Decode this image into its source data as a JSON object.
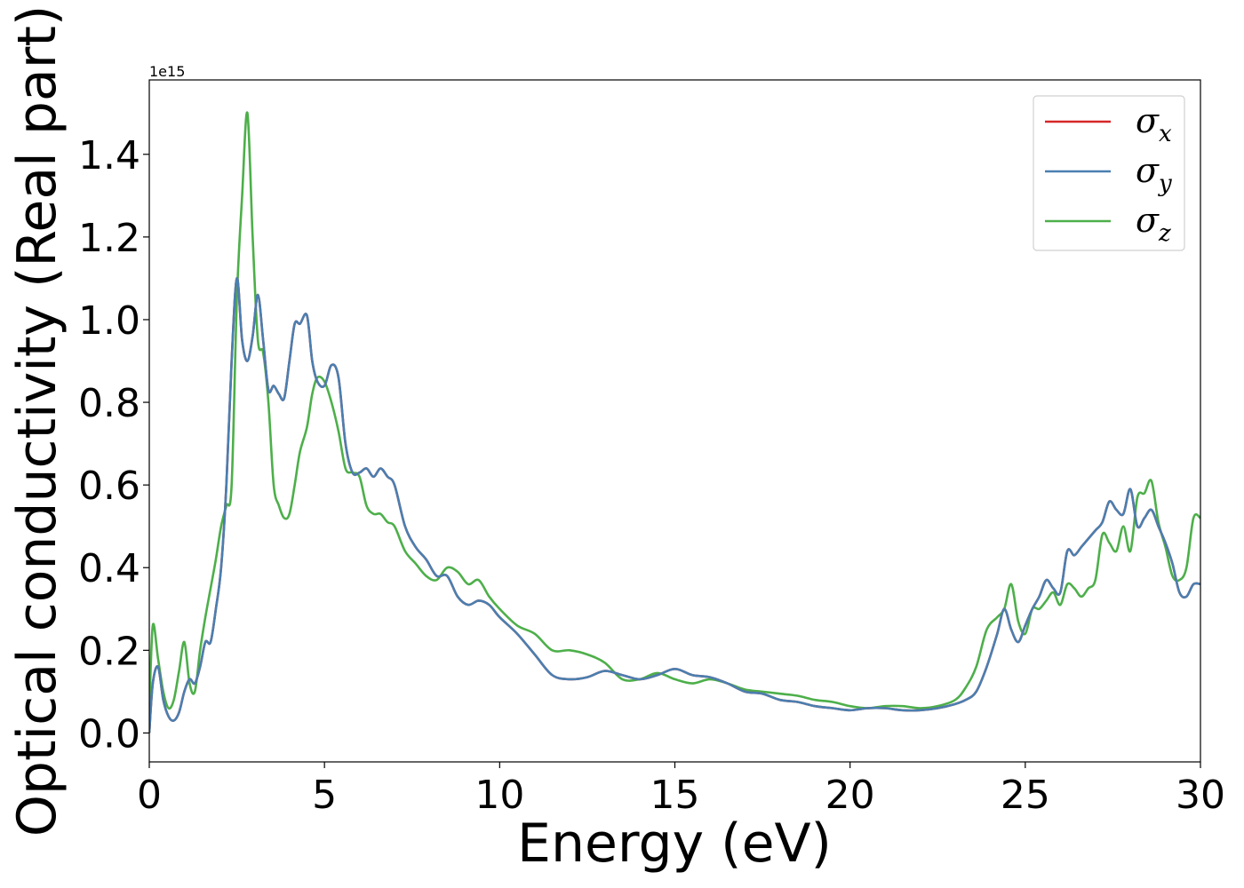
{
  "chart_data": {
    "type": "line",
    "xlabel": "Energy (eV)",
    "ylabel": "Optical conductivity (Real part)",
    "y_offset_text": "1e15",
    "xlim": [
      0,
      30
    ],
    "ylim": [
      -0.07,
      1.58
    ],
    "x_ticks": [
      0,
      5,
      10,
      15,
      20,
      25,
      30
    ],
    "x_tick_labels": [
      "0",
      "5",
      "10",
      "15",
      "20",
      "25",
      "30"
    ],
    "y_ticks": [
      0.0,
      0.2,
      0.4,
      0.6,
      0.8,
      1.0,
      1.2,
      1.4
    ],
    "y_tick_labels": [
      "0.0",
      "0.2",
      "0.4",
      "0.6",
      "0.8",
      "1.0",
      "1.2",
      "1.4"
    ],
    "grid": false,
    "legend_position": "top-right",
    "x": [
      0,
      0.1,
      0.25,
      0.4,
      0.55,
      0.7,
      0.85,
      1.0,
      1.15,
      1.3,
      1.45,
      1.6,
      1.75,
      1.9,
      2.05,
      2.2,
      2.35,
      2.5,
      2.65,
      2.8,
      2.95,
      3.1,
      3.25,
      3.4,
      3.55,
      3.7,
      3.85,
      4.0,
      4.15,
      4.3,
      4.5,
      4.65,
      4.8,
      5.0,
      5.2,
      5.4,
      5.6,
      5.8,
      6.0,
      6.2,
      6.4,
      6.6,
      6.8,
      7.0,
      7.3,
      7.6,
      7.9,
      8.2,
      8.5,
      8.8,
      9.1,
      9.4,
      9.7,
      10.0,
      10.5,
      11.0,
      11.5,
      12.0,
      12.5,
      13.0,
      13.5,
      14.0,
      14.5,
      15.0,
      15.5,
      16.0,
      16.5,
      17.0,
      17.5,
      18.0,
      18.5,
      19.0,
      19.5,
      20.0,
      20.5,
      21.0,
      21.5,
      22.0,
      22.5,
      23.0,
      23.3,
      23.6,
      23.9,
      24.2,
      24.4,
      24.6,
      24.8,
      25.0,
      25.2,
      25.4,
      25.6,
      25.8,
      26.0,
      26.2,
      26.4,
      26.6,
      26.8,
      27.0,
      27.2,
      27.4,
      27.6,
      27.8,
      28.0,
      28.2,
      28.4,
      28.6,
      28.8,
      29.0,
      29.2,
      29.4,
      29.6,
      29.8,
      30.0
    ],
    "series": [
      {
        "name": "σx",
        "color": "#d62728",
        "values": [
          0.0,
          0.12,
          0.16,
          0.08,
          0.04,
          0.03,
          0.05,
          0.1,
          0.13,
          0.12,
          0.16,
          0.22,
          0.22,
          0.3,
          0.4,
          0.6,
          0.9,
          1.1,
          0.95,
          0.9,
          0.96,
          1.06,
          0.95,
          0.83,
          0.84,
          0.82,
          0.81,
          0.9,
          0.99,
          0.99,
          1.01,
          0.9,
          0.85,
          0.84,
          0.89,
          0.86,
          0.7,
          0.63,
          0.63,
          0.64,
          0.62,
          0.64,
          0.62,
          0.6,
          0.5,
          0.45,
          0.42,
          0.38,
          0.38,
          0.33,
          0.31,
          0.32,
          0.31,
          0.28,
          0.24,
          0.19,
          0.14,
          0.13,
          0.135,
          0.15,
          0.14,
          0.13,
          0.14,
          0.155,
          0.14,
          0.135,
          0.12,
          0.1,
          0.095,
          0.08,
          0.075,
          0.065,
          0.06,
          0.055,
          0.06,
          0.06,
          0.055,
          0.055,
          0.06,
          0.07,
          0.08,
          0.1,
          0.16,
          0.24,
          0.3,
          0.25,
          0.22,
          0.26,
          0.3,
          0.33,
          0.37,
          0.35,
          0.34,
          0.44,
          0.43,
          0.45,
          0.47,
          0.49,
          0.51,
          0.56,
          0.54,
          0.53,
          0.59,
          0.5,
          0.52,
          0.54,
          0.5,
          0.46,
          0.41,
          0.34,
          0.33,
          0.36,
          0.36
        ],
        "values_note_hidden": null
      },
      {
        "name": "σy",
        "color": "#4a7fb0",
        "values": [
          0.0,
          0.12,
          0.16,
          0.08,
          0.04,
          0.03,
          0.05,
          0.1,
          0.13,
          0.12,
          0.16,
          0.22,
          0.22,
          0.3,
          0.4,
          0.6,
          0.9,
          1.1,
          0.95,
          0.9,
          0.96,
          1.06,
          0.95,
          0.83,
          0.84,
          0.82,
          0.81,
          0.9,
          0.99,
          0.99,
          1.01,
          0.9,
          0.85,
          0.84,
          0.89,
          0.86,
          0.7,
          0.63,
          0.63,
          0.64,
          0.62,
          0.64,
          0.62,
          0.6,
          0.5,
          0.45,
          0.42,
          0.38,
          0.38,
          0.33,
          0.31,
          0.32,
          0.31,
          0.28,
          0.24,
          0.19,
          0.14,
          0.13,
          0.135,
          0.15,
          0.14,
          0.13,
          0.14,
          0.155,
          0.14,
          0.135,
          0.12,
          0.1,
          0.095,
          0.08,
          0.075,
          0.065,
          0.06,
          0.055,
          0.06,
          0.06,
          0.055,
          0.055,
          0.06,
          0.07,
          0.08,
          0.1,
          0.16,
          0.24,
          0.3,
          0.25,
          0.22,
          0.26,
          0.3,
          0.33,
          0.37,
          0.35,
          0.34,
          0.44,
          0.43,
          0.45,
          0.47,
          0.49,
          0.51,
          0.56,
          0.54,
          0.53,
          0.59,
          0.5,
          0.52,
          0.54,
          0.5,
          0.46,
          0.41,
          0.34,
          0.33,
          0.36,
          0.36
        ]
      },
      {
        "name": "σz",
        "color": "#4daf4a",
        "values": [
          0.05,
          0.26,
          0.18,
          0.1,
          0.06,
          0.08,
          0.15,
          0.22,
          0.12,
          0.1,
          0.2,
          0.28,
          0.35,
          0.42,
          0.5,
          0.55,
          0.6,
          1.05,
          1.3,
          1.5,
          1.2,
          0.95,
          0.92,
          0.8,
          0.6,
          0.55,
          0.52,
          0.53,
          0.6,
          0.68,
          0.74,
          0.82,
          0.86,
          0.85,
          0.8,
          0.73,
          0.64,
          0.63,
          0.62,
          0.55,
          0.53,
          0.53,
          0.51,
          0.5,
          0.44,
          0.41,
          0.38,
          0.37,
          0.4,
          0.39,
          0.36,
          0.37,
          0.33,
          0.3,
          0.26,
          0.24,
          0.2,
          0.2,
          0.19,
          0.17,
          0.13,
          0.13,
          0.145,
          0.13,
          0.12,
          0.13,
          0.12,
          0.105,
          0.1,
          0.095,
          0.09,
          0.08,
          0.075,
          0.065,
          0.06,
          0.065,
          0.065,
          0.06,
          0.065,
          0.08,
          0.11,
          0.16,
          0.25,
          0.28,
          0.3,
          0.36,
          0.27,
          0.24,
          0.3,
          0.3,
          0.32,
          0.34,
          0.31,
          0.36,
          0.35,
          0.33,
          0.35,
          0.37,
          0.48,
          0.46,
          0.44,
          0.5,
          0.44,
          0.57,
          0.58,
          0.61,
          0.51,
          0.45,
          0.38,
          0.37,
          0.4,
          0.52,
          0.52
        ]
      }
    ]
  }
}
